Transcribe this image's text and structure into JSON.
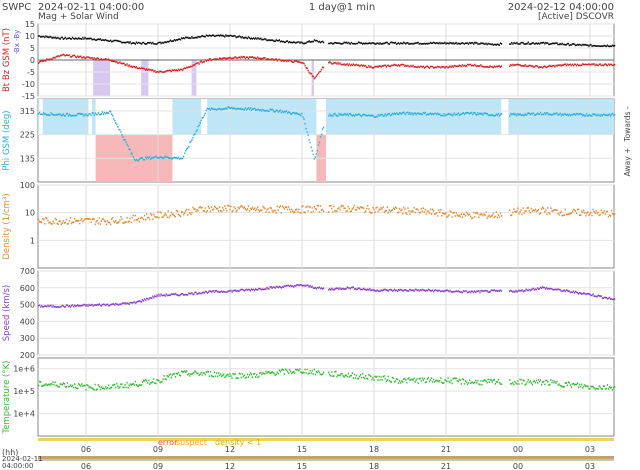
{
  "header": {
    "brand": "SWPC",
    "subtitle": "Mag + Solar Wind",
    "start_time": "2024-02-11 04:00:00",
    "span": "1 day@1 min",
    "end_time": "2024-02-12 04:00:00",
    "status": "[Active] DSCOVR"
  },
  "colors": {
    "bt": "#111111",
    "bz": "#dd2222",
    "phi": "#2aaee0",
    "phi_fill": "#bfe6f7",
    "away_fill": "#f6b8b8",
    "dir_change": "#c8b0e8",
    "density": "#e8882a",
    "speed": "#8a3fd0",
    "temperature": "#33bb33",
    "error": "#ff4444",
    "suspect": "#ffaa00",
    "density_low": "#ddaa00"
  },
  "footer": {
    "hh_label": "(hh)",
    "date_label": "2024-02-11",
    "time_label": "04:00:00",
    "error": "error",
    "suspect": "suspect",
    "density_note": "density < 1"
  },
  "chart_data": [
    {
      "type": "scatter",
      "panel": "mag",
      "ylabel": "Bt  Bz GSM (nT)",
      "ylabel_extra": "-Bx  -By",
      "ylim": [
        -15,
        15
      ],
      "yticks": [
        -15,
        -10,
        -5,
        0,
        5,
        10,
        15
      ],
      "x_hours": [
        6,
        9,
        12,
        15,
        18,
        21,
        24,
        27
      ],
      "x_tick_labels": [
        "06",
        "09",
        "12",
        "15",
        "18",
        "21",
        "00",
        "03"
      ],
      "series": [
        {
          "name": "Bt",
          "x": [
            4,
            5,
            6,
            7,
            8,
            9,
            10,
            11,
            12,
            13,
            14,
            15,
            15.5,
            16,
            17,
            18,
            19,
            20,
            21,
            22,
            23,
            24,
            25,
            26,
            27,
            28
          ],
          "y": [
            10,
            9,
            9,
            8,
            7,
            7,
            9,
            10,
            10,
            9,
            8,
            7,
            8,
            7,
            7,
            7,
            7,
            7,
            7,
            7,
            6.5,
            7,
            7,
            6.5,
            6,
            6
          ]
        },
        {
          "name": "Bz",
          "x": [
            4,
            5,
            6,
            7,
            8,
            9,
            10,
            11,
            12,
            13,
            14,
            15,
            15.5,
            16,
            17,
            18,
            19,
            20,
            21,
            22,
            23,
            24,
            25,
            26,
            27,
            28
          ],
          "y": [
            -1,
            2,
            1,
            0,
            -3,
            -5,
            -4,
            0,
            1,
            1,
            0,
            -1,
            -8,
            -1,
            -2,
            -3,
            -2,
            -3,
            -3,
            -2,
            -3,
            -2,
            -3,
            -2,
            -2,
            -2
          ]
        }
      ]
    },
    {
      "type": "scatter",
      "panel": "phi",
      "ylabel": "Phi GSM (deg)",
      "ylim": [
        45,
        360
      ],
      "ytick_labels": [
        "315",
        "225",
        "135"
      ],
      "yticks": [
        315,
        225,
        135
      ],
      "side_labels": [
        "Towards -",
        "Away +"
      ],
      "series": [
        {
          "name": "Phi",
          "x": [
            4,
            5,
            6,
            7,
            8,
            9,
            10,
            11,
            12,
            13,
            14,
            15,
            15.5,
            16,
            17,
            18,
            19,
            20,
            21,
            22,
            23,
            24,
            25,
            26,
            27,
            28
          ],
          "y": [
            305,
            300,
            300,
            310,
            130,
            140,
            135,
            320,
            325,
            320,
            315,
            300,
            130,
            300,
            300,
            295,
            305,
            305,
            300,
            305,
            300,
            300,
            305,
            300,
            300,
            300
          ]
        }
      ]
    },
    {
      "type": "scatter",
      "panel": "density",
      "ylabel": "Density (1/cm³)",
      "scale": "log",
      "ylim": [
        0.1,
        100
      ],
      "ytick_labels": [
        "100",
        "10",
        "1"
      ],
      "yticks": [
        100,
        10,
        1
      ],
      "series": [
        {
          "name": "Density",
          "x": [
            4,
            5,
            6,
            7,
            8,
            9,
            10,
            11,
            12,
            13,
            14,
            15,
            16,
            17,
            18,
            19,
            20,
            21,
            22,
            23,
            24,
            25,
            26,
            27,
            28
          ],
          "y": [
            5,
            5,
            5,
            5,
            6,
            8,
            10,
            14,
            14,
            13,
            13,
            13,
            14,
            14,
            13,
            12,
            11,
            9,
            8,
            8,
            11,
            12,
            10,
            10,
            9
          ]
        }
      ]
    },
    {
      "type": "scatter",
      "panel": "speed",
      "ylabel": "Speed (km/s)",
      "ylim": [
        200,
        700
      ],
      "ytick_labels": [
        "700",
        "600",
        "500",
        "400",
        "300",
        "200"
      ],
      "yticks": [
        700,
        600,
        500,
        400,
        300,
        200
      ],
      "series": [
        {
          "name": "Speed",
          "x": [
            4,
            5,
            6,
            7,
            8,
            9,
            10,
            11,
            12,
            13,
            14,
            15,
            16,
            17,
            18,
            19,
            20,
            21,
            22,
            23,
            24,
            25,
            26,
            27,
            28
          ],
          "y": [
            490,
            490,
            495,
            500,
            510,
            555,
            560,
            575,
            580,
            590,
            605,
            615,
            590,
            600,
            585,
            585,
            585,
            580,
            575,
            580,
            580,
            600,
            580,
            560,
            530
          ]
        }
      ]
    },
    {
      "type": "scatter",
      "panel": "temperature",
      "ylabel": "Temperature (°K)",
      "scale": "log",
      "ylim": [
        1000,
        3000000
      ],
      "ytick_labels": [
        "1e+6",
        "1e+5",
        "1e+4"
      ],
      "yticks": [
        1000000,
        100000,
        10000
      ],
      "series": [
        {
          "name": "Temperature",
          "x": [
            4,
            5,
            6,
            7,
            8,
            9,
            10,
            11,
            12,
            13,
            14,
            15,
            16,
            17,
            18,
            19,
            20,
            21,
            22,
            23,
            24,
            25,
            26,
            27,
            28
          ],
          "y": [
            200000,
            200000,
            150000,
            150000,
            200000,
            300000,
            600000,
            600000,
            500000,
            500000,
            700000,
            800000,
            600000,
            500000,
            400000,
            300000,
            300000,
            300000,
            250000,
            250000,
            250000,
            250000,
            200000,
            150000,
            150000
          ]
        }
      ]
    }
  ]
}
